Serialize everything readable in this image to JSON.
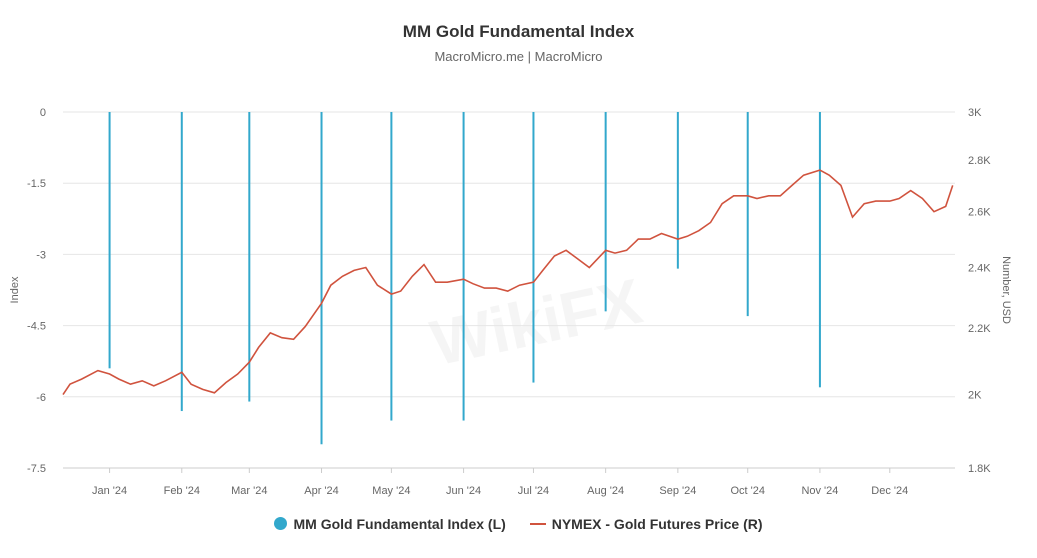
{
  "header": {
    "title": "MM Gold Fundamental Index",
    "subtitle": "MacroMicro.me | MacroMicro"
  },
  "legend": {
    "items": [
      {
        "label": "MM Gold Fundamental Index (L)",
        "color": "#32a8cc",
        "icon": "dot-icon"
      },
      {
        "label": "NYMEX - Gold Futures Price (R)",
        "color": "#d0533e",
        "icon": "line-icon"
      }
    ]
  },
  "watermark": "WikiFX",
  "chart_data": {
    "type": "bar+line",
    "title": "MM Gold Fundamental Index",
    "subtitle": "MacroMicro.me | MacroMicro",
    "x_ticks": [
      "Jan '24",
      "Feb '24",
      "Mar '24",
      "Apr '24",
      "May '24",
      "Jun '24",
      "Jul '24",
      "Aug '24",
      "Sep '24",
      "Oct '24",
      "Nov '24",
      "Dec '24"
    ],
    "left_axis": {
      "label": "Index",
      "ylim": [
        -7.5,
        0
      ],
      "ticks": [
        "0",
        "-1.5",
        "-3",
        "-4.5",
        "-6",
        "-7.5"
      ]
    },
    "right_axis": {
      "label": "Number, USD",
      "ylim": [
        1800,
        3000
      ],
      "ticks": [
        "3K",
        "2.8K",
        "2.6K",
        "2.4K",
        "2.2K",
        "2K",
        "1.8K"
      ],
      "scale": "log"
    },
    "grid": true,
    "legend_position": "bottom",
    "series": [
      {
        "name": "MM Gold Fundamental Index (L)",
        "type": "bar",
        "color": "#32a8cc",
        "axis": "left",
        "x": [
          "2024-01-01",
          "2024-02-01",
          "2024-03-01",
          "2024-04-01",
          "2024-05-01",
          "2024-06-01",
          "2024-07-01",
          "2024-08-01",
          "2024-09-01",
          "2024-10-01",
          "2024-11-01"
        ],
        "values": [
          -5.4,
          -6.3,
          -6.1,
          -7.0,
          -6.5,
          -6.5,
          -5.7,
          -4.2,
          -3.3,
          -4.3,
          -5.8
        ]
      },
      {
        "name": "NYMEX - Gold Futures Price (R)",
        "type": "line",
        "color": "#d0533e",
        "axis": "right",
        "x": [
          "2023-12-12",
          "2023-12-15",
          "2023-12-20",
          "2023-12-27",
          "2024-01-01",
          "2024-01-05",
          "2024-01-10",
          "2024-01-15",
          "2024-01-20",
          "2024-01-25",
          "2024-02-01",
          "2024-02-05",
          "2024-02-10",
          "2024-02-15",
          "2024-02-20",
          "2024-02-25",
          "2024-03-01",
          "2024-03-05",
          "2024-03-10",
          "2024-03-15",
          "2024-03-20",
          "2024-03-25",
          "2024-04-01",
          "2024-04-05",
          "2024-04-10",
          "2024-04-15",
          "2024-04-20",
          "2024-04-25",
          "2024-05-01",
          "2024-05-05",
          "2024-05-10",
          "2024-05-15",
          "2024-05-20",
          "2024-05-25",
          "2024-06-01",
          "2024-06-05",
          "2024-06-10",
          "2024-06-15",
          "2024-06-20",
          "2024-06-25",
          "2024-07-01",
          "2024-07-05",
          "2024-07-10",
          "2024-07-15",
          "2024-07-20",
          "2024-07-25",
          "2024-08-01",
          "2024-08-05",
          "2024-08-10",
          "2024-08-15",
          "2024-08-20",
          "2024-08-25",
          "2024-09-01",
          "2024-09-05",
          "2024-09-10",
          "2024-09-15",
          "2024-09-20",
          "2024-09-25",
          "2024-10-01",
          "2024-10-05",
          "2024-10-10",
          "2024-10-15",
          "2024-10-20",
          "2024-10-25",
          "2024-11-01",
          "2024-11-05",
          "2024-11-10",
          "2024-11-15",
          "2024-11-20",
          "2024-11-25",
          "2024-12-01",
          "2024-12-05",
          "2024-12-10",
          "2024-12-15",
          "2024-12-20",
          "2024-12-25",
          "2024-12-28"
        ],
        "values": [
          2000,
          2030,
          2045,
          2070,
          2060,
          2045,
          2030,
          2040,
          2025,
          2040,
          2065,
          2030,
          2015,
          2005,
          2035,
          2060,
          2095,
          2140,
          2185,
          2170,
          2165,
          2205,
          2280,
          2340,
          2370,
          2390,
          2400,
          2340,
          2310,
          2320,
          2370,
          2410,
          2350,
          2350,
          2360,
          2345,
          2330,
          2330,
          2320,
          2340,
          2350,
          2390,
          2440,
          2460,
          2430,
          2400,
          2460,
          2450,
          2460,
          2500,
          2500,
          2520,
          2500,
          2510,
          2530,
          2560,
          2630,
          2660,
          2660,
          2650,
          2660,
          2660,
          2700,
          2740,
          2760,
          2740,
          2700,
          2580,
          2630,
          2640,
          2640,
          2650,
          2680,
          2650,
          2600,
          2620,
          2700
        ]
      }
    ]
  }
}
